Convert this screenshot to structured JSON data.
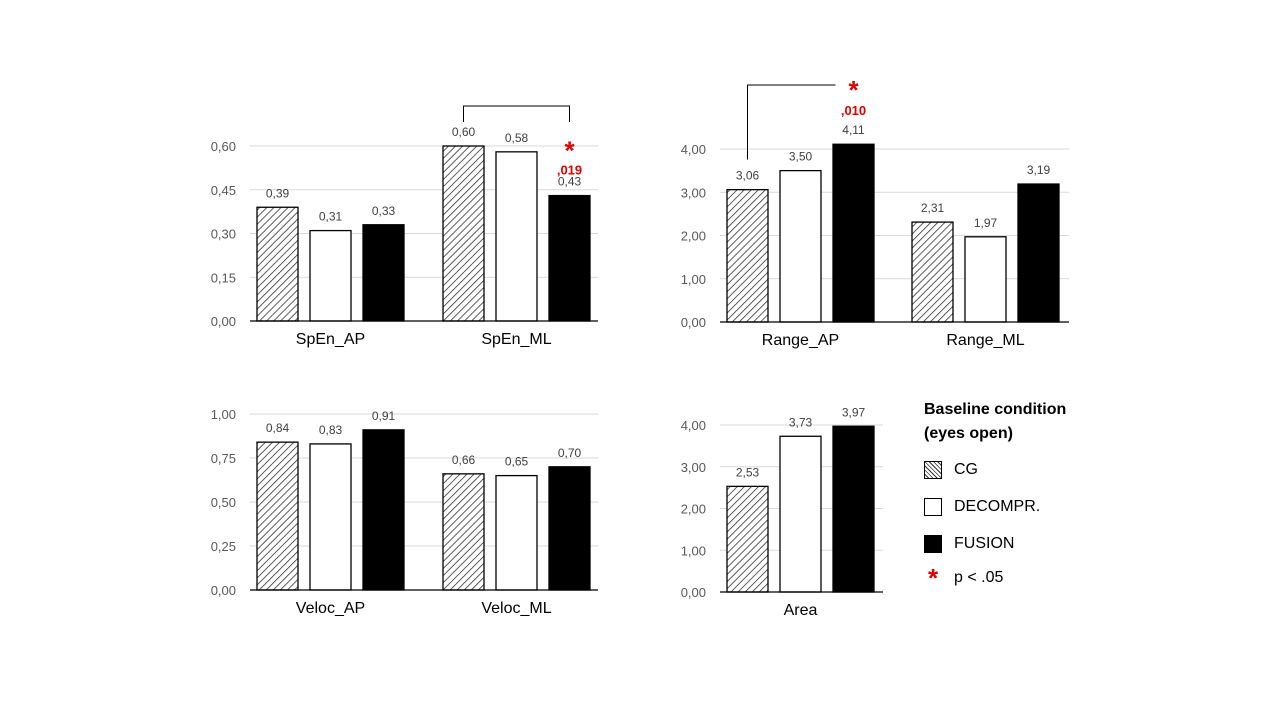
{
  "colors": {
    "cg": "hatched",
    "decompr": "#ffffff",
    "fusion": "#000000",
    "significance": "#e00000"
  },
  "legend": {
    "title_line1": "Baseline condition",
    "title_line2": "(eyes open)",
    "items": [
      {
        "label": "CG",
        "swatch": "hatch"
      },
      {
        "label": "DECOMPR.",
        "swatch": "white"
      },
      {
        "label": "FUSION",
        "swatch": "black"
      }
    ],
    "significance_label": "p < .05"
  },
  "chart_data": [
    {
      "type": "bar",
      "categories": [
        "SpEn_AP",
        "SpEn_ML"
      ],
      "series": [
        {
          "name": "CG",
          "values": [
            0.39,
            0.6
          ]
        },
        {
          "name": "DECOMPR.",
          "values": [
            0.31,
            0.58
          ]
        },
        {
          "name": "FUSION",
          "values": [
            0.33,
            0.43
          ]
        }
      ],
      "value_labels": [
        [
          "0,39",
          "0,31",
          "0,33"
        ],
        [
          "0,60",
          "0,58",
          "0,43"
        ]
      ],
      "ylim": [
        0,
        0.6
      ],
      "yticks": [
        "0,00",
        "0,15",
        "0,30",
        "0,45",
        "0,60"
      ],
      "grid": true,
      "annotations": [
        {
          "category": "SpEn_ML",
          "from_series": "CG",
          "to_series": "FUSION",
          "text": ",019",
          "symbol": "*"
        }
      ]
    },
    {
      "type": "bar",
      "categories": [
        "Range_AP",
        "Range_ML"
      ],
      "series": [
        {
          "name": "CG",
          "values": [
            3.06,
            2.31
          ]
        },
        {
          "name": "DECOMPR.",
          "values": [
            3.5,
            1.97
          ]
        },
        {
          "name": "FUSION",
          "values": [
            4.11,
            3.19
          ]
        }
      ],
      "value_labels": [
        [
          "3,06",
          "3,50",
          "4,11"
        ],
        [
          "2,31",
          "1,97",
          "3,19"
        ]
      ],
      "ylim": [
        0,
        4.0
      ],
      "yticks": [
        "0,00",
        "1,00",
        "2,00",
        "3,00",
        "4,00"
      ],
      "grid": true,
      "annotations": [
        {
          "category": "Range_AP",
          "from_series": "CG",
          "to_series": "FUSION",
          "text": ",010",
          "symbol": "*"
        }
      ]
    },
    {
      "type": "bar",
      "categories": [
        "Veloc_AP",
        "Veloc_ML"
      ],
      "series": [
        {
          "name": "CG",
          "values": [
            0.84,
            0.66
          ]
        },
        {
          "name": "DECOMPR.",
          "values": [
            0.83,
            0.65
          ]
        },
        {
          "name": "FUSION",
          "values": [
            0.91,
            0.7
          ]
        }
      ],
      "value_labels": [
        [
          "0,84",
          "0,83",
          "0,91"
        ],
        [
          "0,66",
          "0,65",
          "0,70"
        ]
      ],
      "ylim": [
        0,
        1.0
      ],
      "yticks": [
        "0,00",
        "0,25",
        "0,50",
        "0,75",
        "1,00"
      ],
      "grid": true,
      "annotations": []
    },
    {
      "type": "bar",
      "categories": [
        "Area"
      ],
      "series": [
        {
          "name": "CG",
          "values": [
            2.53
          ]
        },
        {
          "name": "DECOMPR.",
          "values": [
            3.73
          ]
        },
        {
          "name": "FUSION",
          "values": [
            3.97
          ]
        }
      ],
      "value_labels": [
        [
          "2,53",
          "3,73",
          "3,97"
        ]
      ],
      "ylim": [
        0,
        4.0
      ],
      "yticks": [
        "0,00",
        "1,00",
        "2,00",
        "3,00",
        "4,00"
      ],
      "grid": true,
      "annotations": []
    }
  ]
}
